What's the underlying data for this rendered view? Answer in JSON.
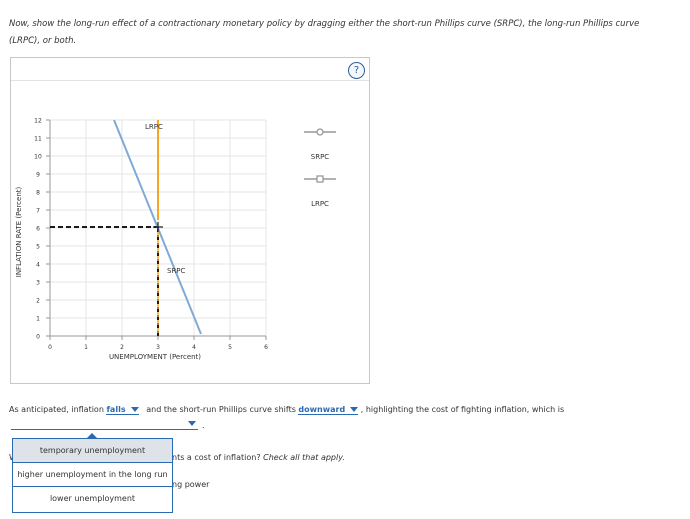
{
  "instructions": "Now, show the long-run effect of a contractionary monetary policy by dragging either the short-run Phillips curve (SRPC), the long-run Phillips curve (LRPC), or both.",
  "help_label": "?",
  "graph": {
    "ylabel": "INFLATION RATE (Percent)",
    "xlabel": "UNEMPLOYMENT (Percent)",
    "y_ticks": [
      "0",
      "1",
      "2",
      "3",
      "4",
      "5",
      "6",
      "7",
      "8",
      "9",
      "10",
      "11",
      "12"
    ],
    "x_ticks": [
      "0",
      "1",
      "2",
      "3",
      "4",
      "5",
      "6"
    ],
    "lrpc_label": "LRPC",
    "srpc_label": "SRPC",
    "colors": {
      "lrpc": "#f5a623",
      "srpc": "#7faad6",
      "dashed": "#1a1a1a"
    },
    "legend": [
      {
        "label": "SRPC",
        "marker": "circle",
        "color": "#999999"
      },
      {
        "label": "LRPC",
        "marker": "square",
        "color": "#999999"
      }
    ]
  },
  "sentence": {
    "part1": "As anticipated, inflation",
    "dropdown1": "falls",
    "part2": "and the short-run Phillips curve shifts",
    "dropdown2": "downward",
    "part3": ", highlighting the cost of fighting inflation, which is",
    "dropdown3": "",
    "end": "."
  },
  "question2": {
    "visible_start": "W",
    "visible_text": "nts a cost of inflation?",
    "instruction": "Check all that apply.",
    "choice_tail": "ng power"
  },
  "menu": {
    "options": [
      "temporary unemployment",
      "higher unemployment in the long run",
      "lower unemployment"
    ]
  }
}
